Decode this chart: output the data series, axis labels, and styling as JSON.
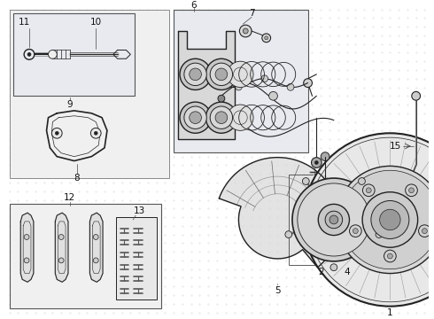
{
  "bg_color": "#ffffff",
  "line_color": "#222222",
  "box_bg": "#e8eaf0",
  "fig_width": 4.9,
  "fig_height": 3.6,
  "dpi": 100
}
